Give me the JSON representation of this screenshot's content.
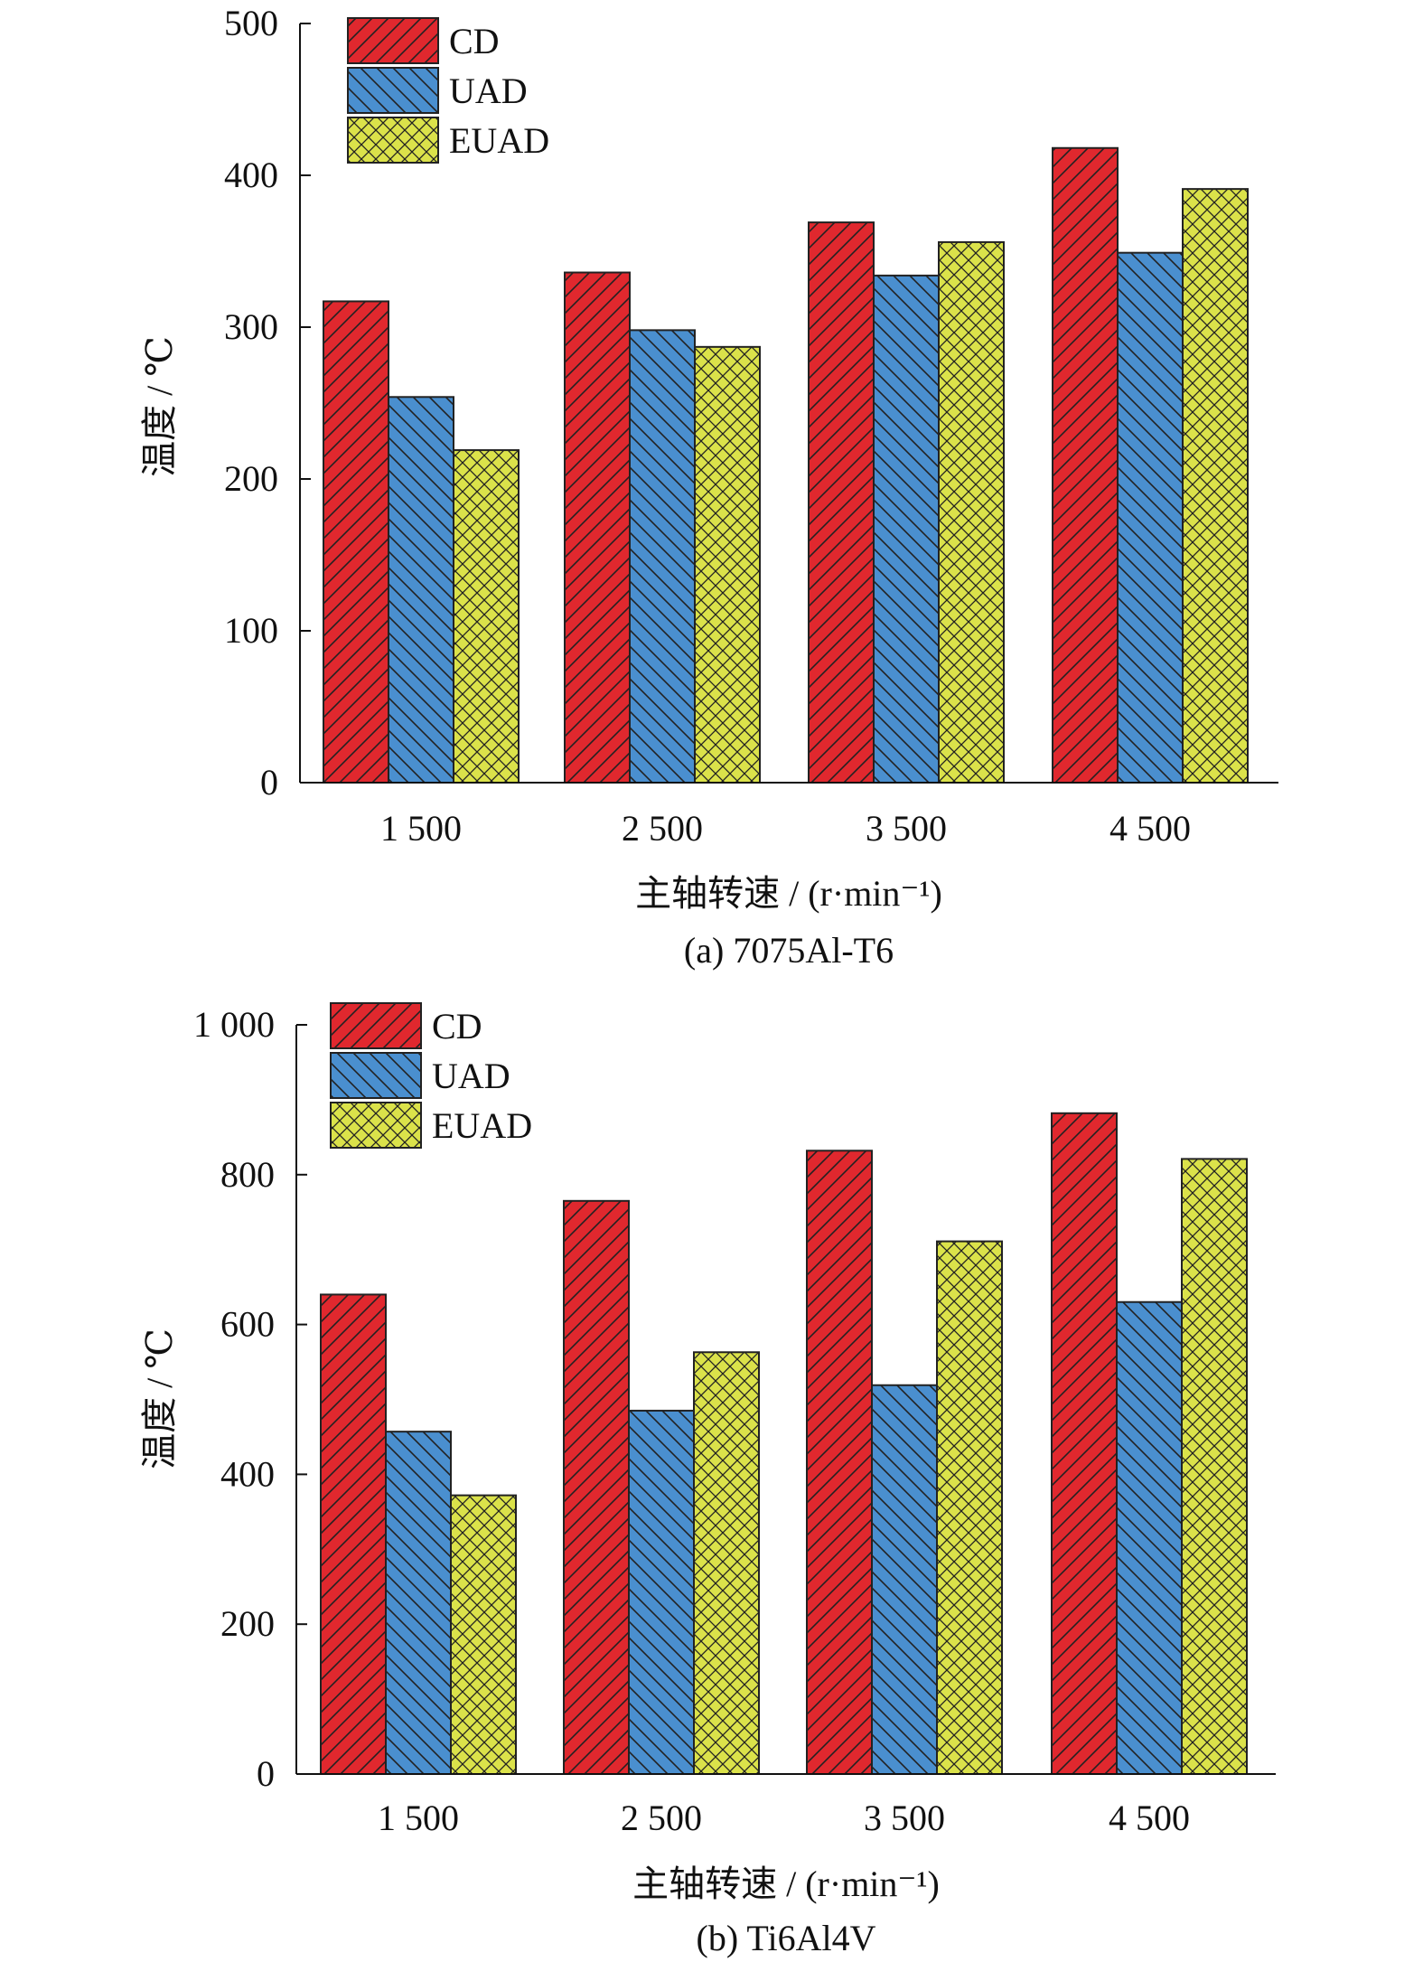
{
  "colors": {
    "cd": "#e0282e",
    "uad": "#4a8fcf",
    "euad": "#dbe24a",
    "stroke": "#222222"
  },
  "legend": [
    {
      "key": "cd",
      "label": "CD",
      "pattern": "hatch-forward"
    },
    {
      "key": "uad",
      "label": "UAD",
      "pattern": "hatch-back"
    },
    {
      "key": "euad",
      "label": "EUAD",
      "pattern": "crosshatch"
    }
  ],
  "chart_data": [
    {
      "type": "bar",
      "subtitle": "(a) 7075Al-T6",
      "xlabel": "主轴转速 / (r·min⁻¹)",
      "ylabel": "温度 / ℃",
      "categories": [
        "1 500",
        "2 500",
        "3 500",
        "4 500"
      ],
      "ylim": [
        0,
        500
      ],
      "yticks": [
        0,
        100,
        200,
        300,
        400,
        500
      ],
      "ytick_labels": [
        "0",
        "100",
        "200",
        "300",
        "400",
        "500"
      ],
      "legend_position": "top-left",
      "grid": false,
      "series": [
        {
          "name": "CD",
          "key": "cd",
          "values": [
            317,
            336,
            369,
            418
          ]
        },
        {
          "name": "UAD",
          "key": "uad",
          "values": [
            254,
            298,
            334,
            349
          ]
        },
        {
          "name": "EUAD",
          "key": "euad",
          "values": [
            219,
            287,
            356,
            391
          ]
        }
      ]
    },
    {
      "type": "bar",
      "subtitle": "(b) Ti6Al4V",
      "xlabel": "主轴转速 / (r·min⁻¹)",
      "ylabel": "温度 / ℃",
      "categories": [
        "1 500",
        "2 500",
        "3 500",
        "4 500"
      ],
      "ylim": [
        0,
        1000
      ],
      "yticks": [
        0,
        200,
        400,
        600,
        800,
        1000
      ],
      "ytick_labels": [
        "0",
        "200",
        "400",
        "600",
        "800",
        "1 000"
      ],
      "legend_position": "top-left",
      "grid": false,
      "series": [
        {
          "name": "CD",
          "key": "cd",
          "values": [
            640,
            765,
            832,
            882
          ]
        },
        {
          "name": "UAD",
          "key": "uad",
          "values": [
            457,
            485,
            519,
            630
          ]
        },
        {
          "name": "EUAD",
          "key": "euad",
          "values": [
            372,
            563,
            711,
            821
          ]
        }
      ]
    }
  ]
}
